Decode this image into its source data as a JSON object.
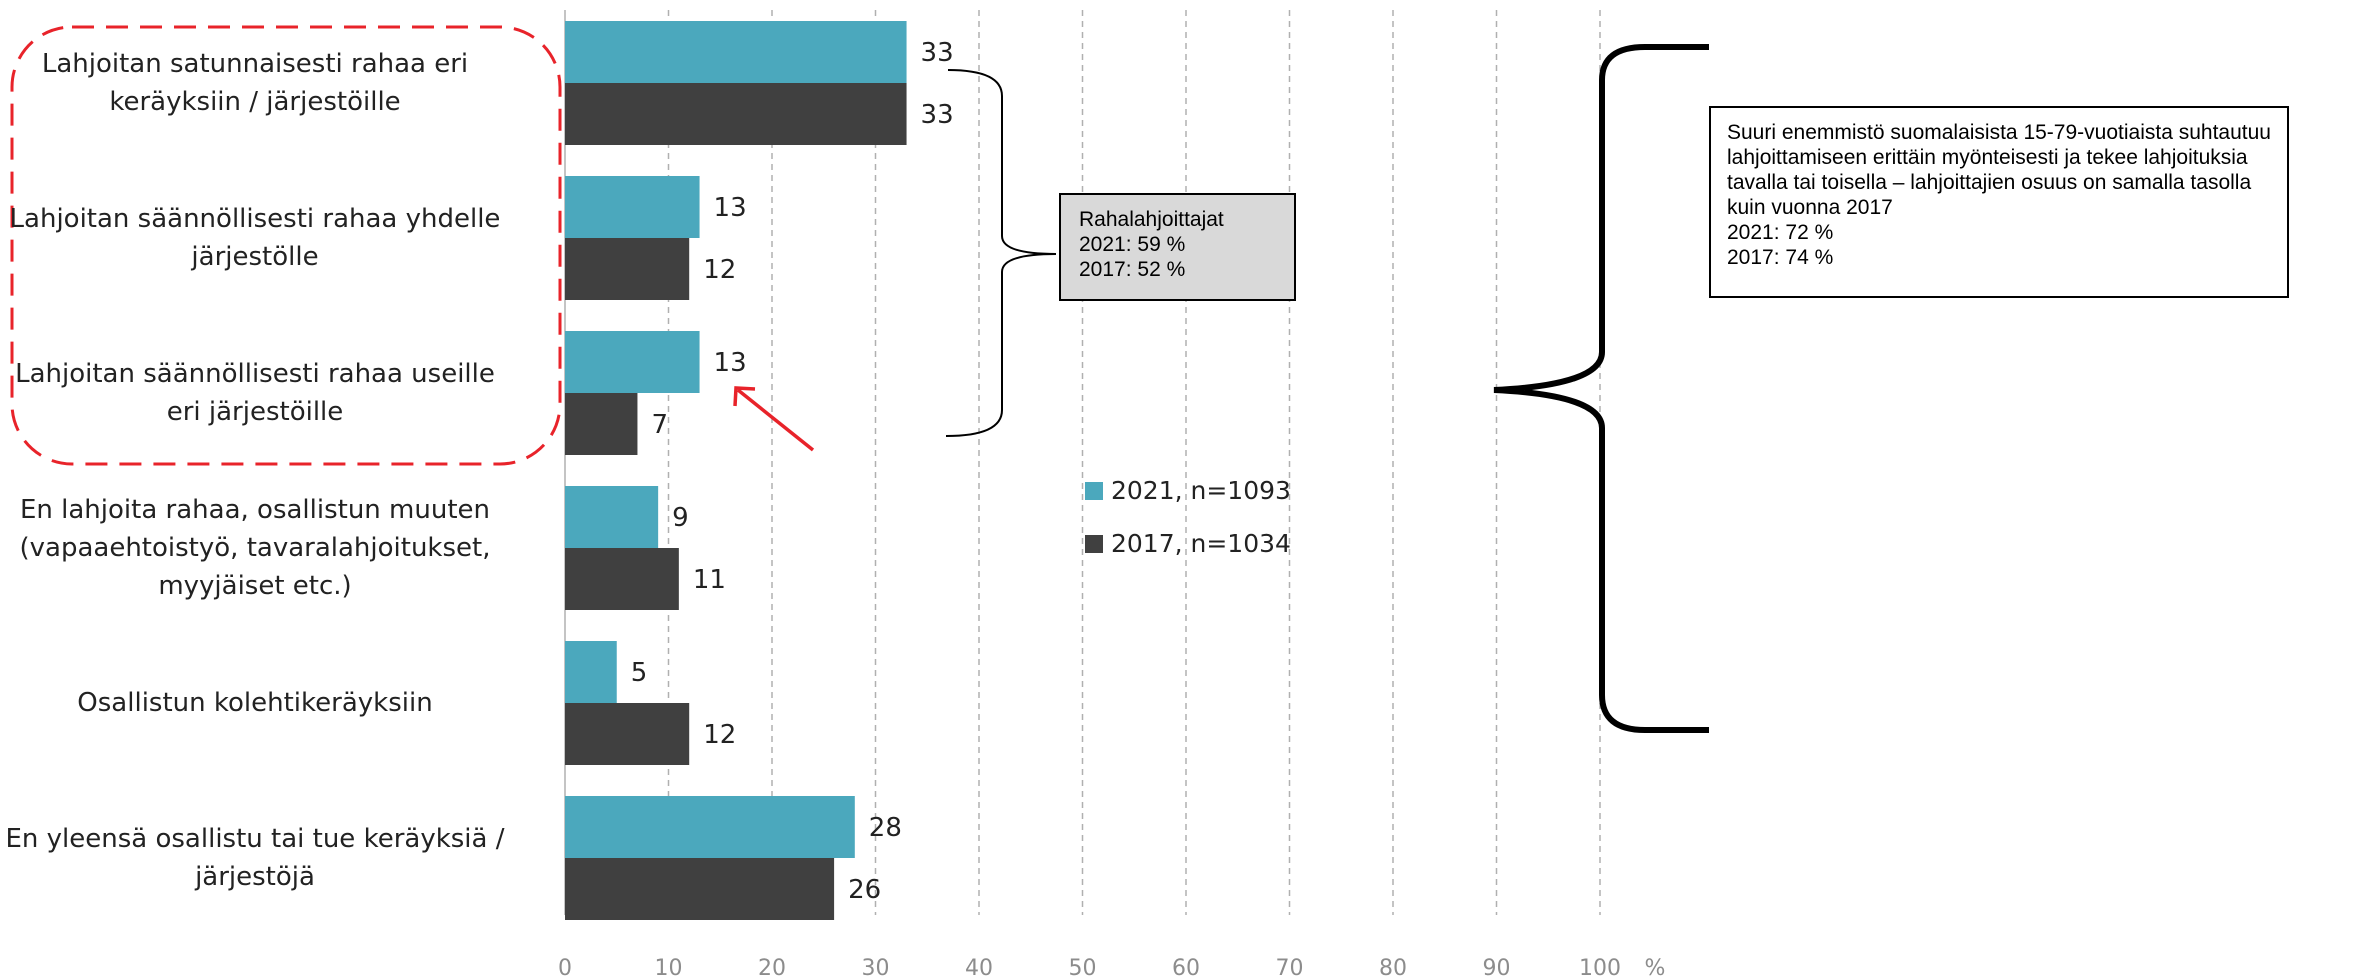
{
  "chart_data": {
    "type": "bar",
    "orientation": "horizontal",
    "categories": [
      "Lahjoitan satunnaisesti rahaa eri\nkeräyksiin / järjestöille",
      "Lahjoitan säännöllisesti rahaa yhdelle\njärjestölle",
      "Lahjoitan säännöllisesti rahaa useille\neri järjestöille",
      "En lahjoita rahaa, osallistun muuten\n(vapaaehtoistyö, tavaralahjoitukset,\nmyyjäiset etc.)",
      "Osallistun kolehtikeräyksiin",
      "En yleensä osallistu tai tue keräyksiä /\njärjestöjä"
    ],
    "series": [
      {
        "name": "2021, n=1093",
        "color": "#4ba8bd",
        "values": [
          33,
          13,
          13,
          9,
          5,
          28
        ]
      },
      {
        "name": "2017, n=1034",
        "color": "#404040",
        "values": [
          33,
          12,
          7,
          11,
          12,
          26
        ]
      }
    ],
    "xlim": [
      0,
      100
    ],
    "x_ticks": [
      "0",
      "10",
      "20",
      "30",
      "40",
      "50",
      "60",
      "70",
      "80",
      "90",
      "100"
    ],
    "x_unit": "%",
    "grid": "vertical dashed",
    "legend_position": "center-right",
    "callout": {
      "title": "Rahalahjoittajat",
      "line1": "2021: 59 %",
      "line2": "2017: 52 %"
    },
    "note": {
      "text": "Suuri enemmistö suomalaisista 15-79-vuotiaista suhtautuu lahjoittamiseen erittäin myönteisesti ja tekee lahjoituksia tavalla tai toisella – lahjoittajien osuus on samalla tasolla kuin vuonna 2017",
      "line1": "2021: 72 %",
      "line2": "2017: 74 %"
    }
  }
}
